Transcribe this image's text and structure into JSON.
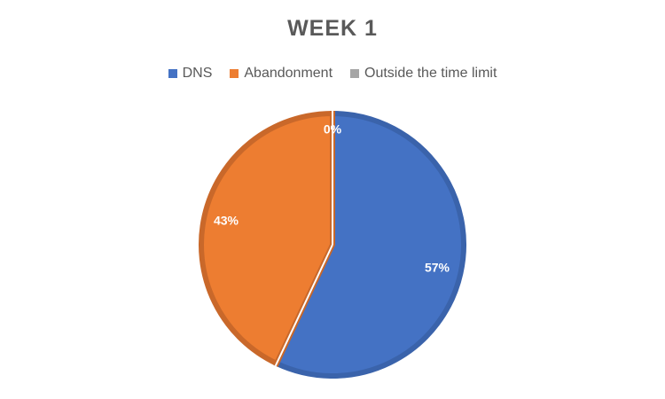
{
  "chart_data": {
    "type": "pie",
    "title": "WEEK 1",
    "legend_position": "top",
    "slices": [
      {
        "name": "DNS",
        "value": 57,
        "label": "57%",
        "color": "#4472C4",
        "edge": "#3A63AB"
      },
      {
        "name": "Abandonment",
        "value": 43,
        "label": "43%",
        "color": "#ED7D31",
        "edge": "#C9682A"
      },
      {
        "name": "Outside the time limit",
        "value": 0,
        "label": "0%",
        "color": "#A5A5A5",
        "edge": "#8C8C8C"
      }
    ]
  }
}
